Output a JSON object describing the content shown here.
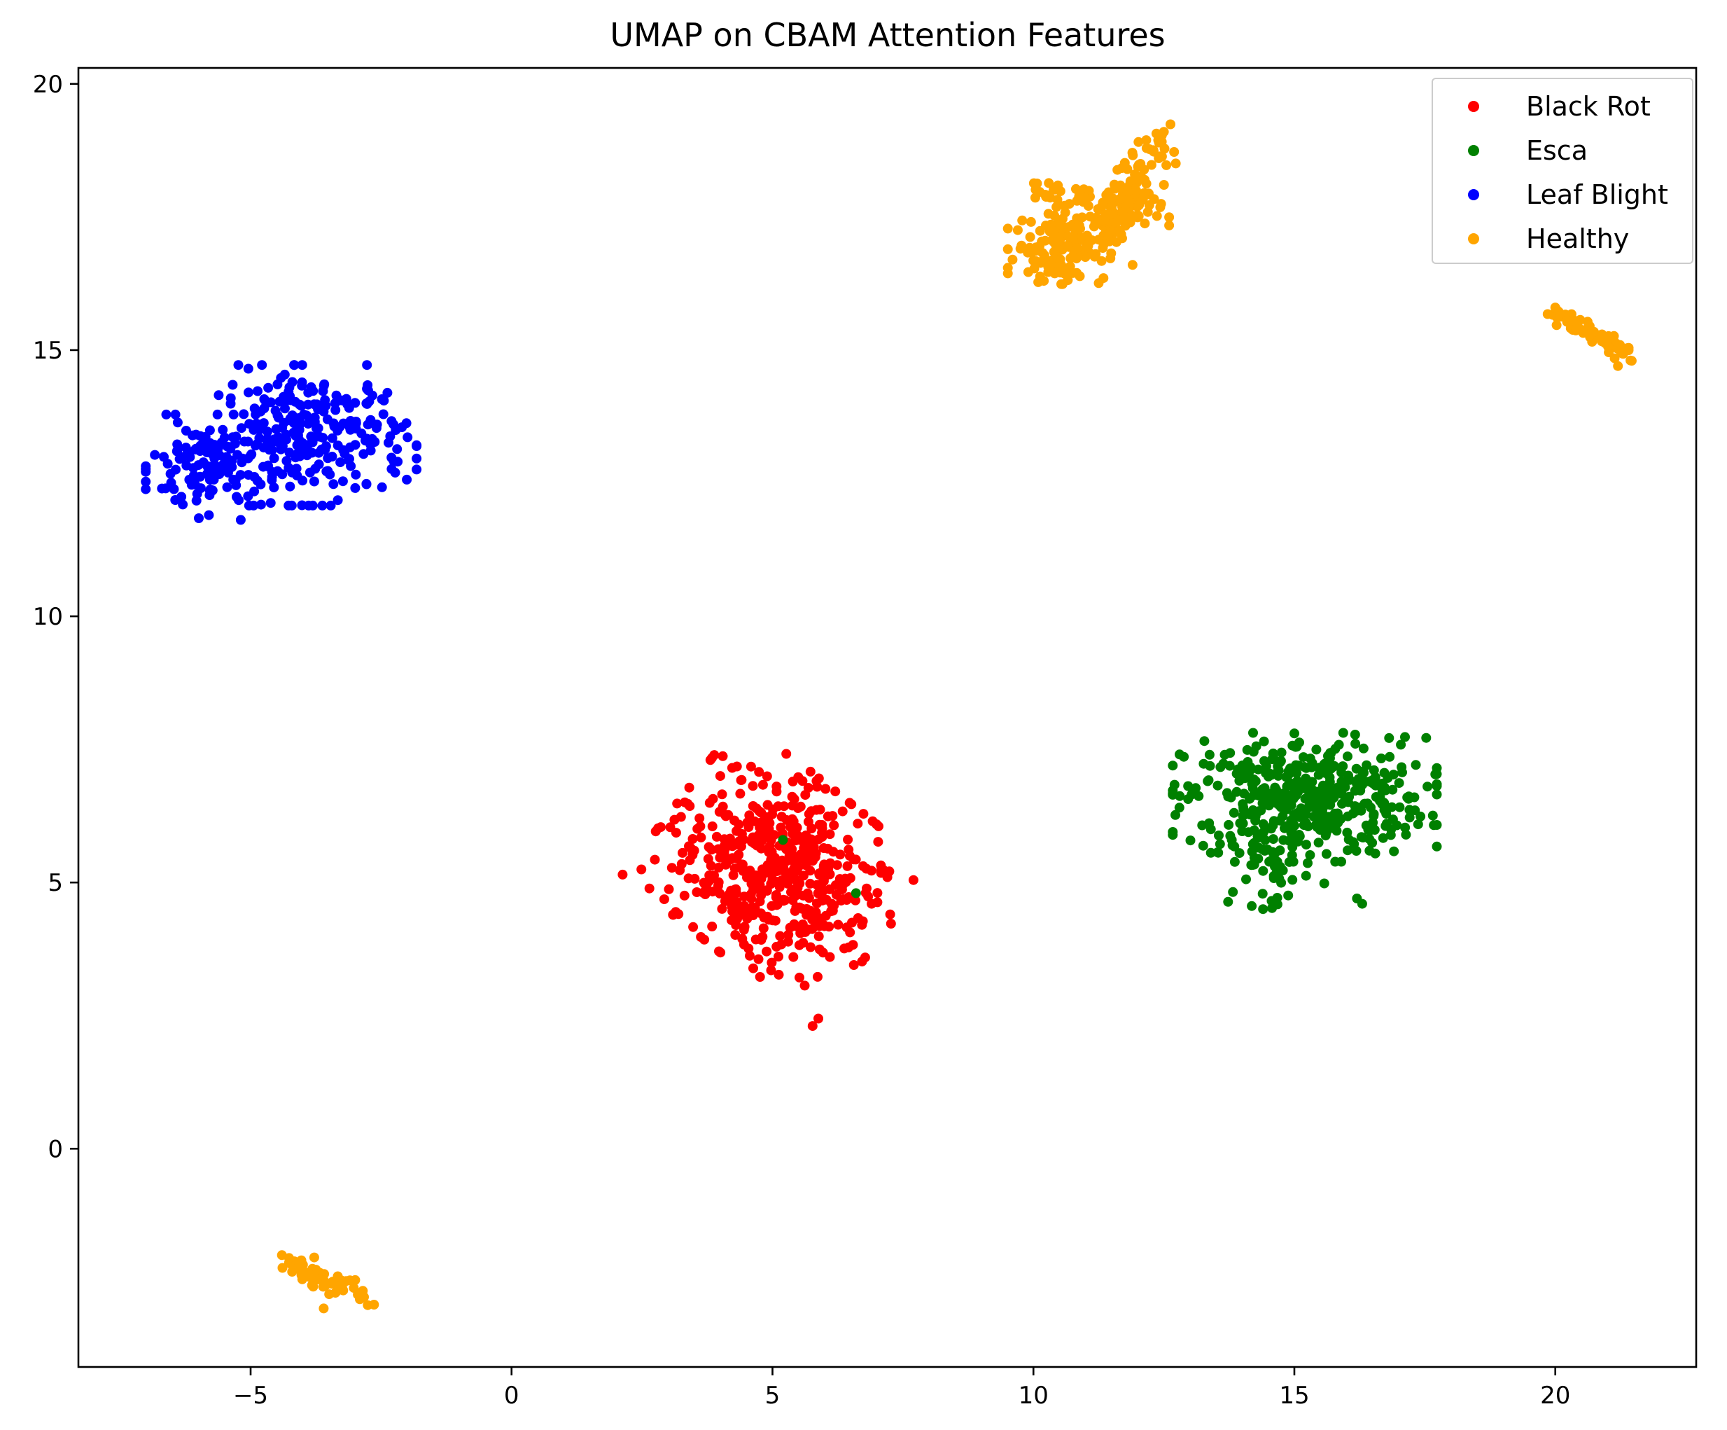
{
  "chart_data": {
    "type": "scatter",
    "title": "UMAP on CBAM Attention Features",
    "xlabel": "",
    "ylabel": "",
    "xlim": [
      -8.3,
      22.7
    ],
    "ylim": [
      -4.1,
      20.3
    ],
    "xticks": [
      -5,
      0,
      5,
      10,
      15,
      20
    ],
    "yticks": [
      0,
      5,
      10,
      15,
      20
    ],
    "xtick_labels": [
      "−5",
      "0",
      "5",
      "10",
      "15",
      "20"
    ],
    "ytick_labels": [
      "0",
      "5",
      "10",
      "15",
      "20"
    ],
    "grid": false,
    "legend_position": "top-right",
    "series": [
      {
        "name": "Black Rot",
        "color": "#ff0000",
        "clusters": [
          {
            "center": [
              5.1,
              5.2
            ],
            "spread": [
              1.05,
              0.85
            ],
            "angle": -38,
            "count": 520
          }
        ],
        "points": [
          [
            3.5,
            5.6
          ],
          [
            4.0,
            7.0
          ],
          [
            6.9,
            4.6
          ],
          [
            5.4,
            3.6
          ],
          [
            6.1,
            3.6
          ]
        ]
      },
      {
        "name": "Esca",
        "color": "#008000",
        "clusters": [
          {
            "center": [
              15.2,
              6.6
            ],
            "spread": [
              1.15,
              0.55
            ],
            "angle": 0,
            "count": 420
          },
          {
            "center": [
              14.5,
              5.4
            ],
            "spread": [
              0.5,
              0.4
            ],
            "angle": 0,
            "count": 60
          }
        ],
        "points": [
          [
            5.2,
            5.8
          ],
          [
            6.6,
            4.8
          ],
          [
            16.2,
            4.7
          ],
          [
            16.3,
            4.6
          ],
          [
            14.4,
            4.5
          ],
          [
            13.4,
            6.0
          ],
          [
            17.3,
            6.6
          ],
          [
            15.0,
            7.8
          ]
        ]
      },
      {
        "name": "Leaf Blight",
        "color": "#0000ff",
        "clusters": [
          {
            "center": [
              -3.8,
              13.4
            ],
            "spread": [
              0.9,
              0.6
            ],
            "angle": 0,
            "count": 260
          },
          {
            "center": [
              -5.8,
              12.8
            ],
            "spread": [
              0.55,
              0.45
            ],
            "angle": 0,
            "count": 120
          }
        ],
        "points": [
          [
            -6.7,
            12.4
          ],
          [
            -5.8,
            11.9
          ],
          [
            -4.2,
            14.4
          ],
          [
            -2.8,
            13.3
          ],
          [
            -6.3,
            12.1
          ]
        ]
      },
      {
        "name": "Healthy",
        "color": "#ffa500",
        "clusters": [
          {
            "center": [
              10.5,
              16.9
            ],
            "spread": [
              0.45,
              0.3
            ],
            "angle": 0,
            "count": 130
          },
          {
            "center": [
              11.5,
              17.6
            ],
            "spread": [
              0.5,
              0.25
            ],
            "angle": 0,
            "count": 60
          }
        ],
        "lines": [
          {
            "from": [
              11.3,
              17.0
            ],
            "to": [
              12.5,
              19.1
            ],
            "count": 90,
            "jitter": 0.18
          },
          {
            "from": [
              10.0,
              18.1
            ],
            "to": [
              11.2,
              17.8
            ],
            "count": 30,
            "jitter": 0.12
          },
          {
            "from": [
              20.0,
              15.7
            ],
            "to": [
              21.5,
              14.9
            ],
            "count": 70,
            "jitter": 0.08
          },
          {
            "from": [
              -4.4,
              -2.1
            ],
            "to": [
              -2.7,
              -2.8
            ],
            "count": 60,
            "jitter": 0.12
          }
        ],
        "points": [
          [
            9.6,
            16.7
          ],
          [
            10.2,
            16.3
          ],
          [
            11.7,
            17.1
          ],
          [
            11.9,
            16.6
          ],
          [
            12.5,
            19.1
          ],
          [
            20.0,
            15.8
          ],
          [
            21.2,
            14.7
          ],
          [
            -3.6,
            -3.0
          ],
          [
            -4.4,
            -2.0
          ]
        ]
      }
    ]
  }
}
